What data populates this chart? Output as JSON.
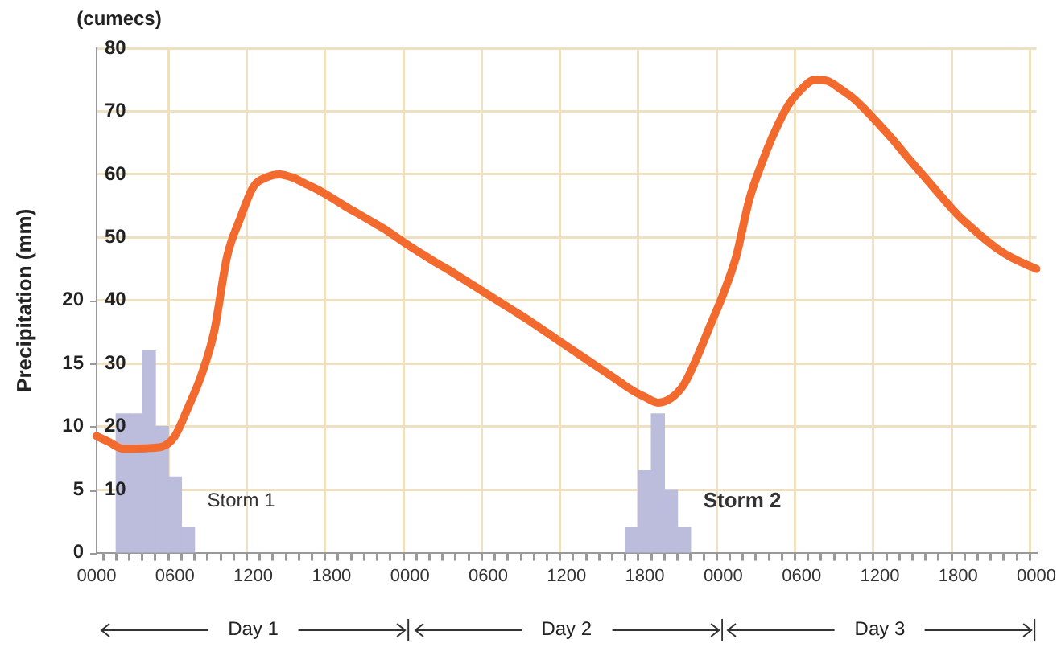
{
  "chart_data": {
    "type": "line",
    "ylabel": "(cumecs)",
    "y2label": "Precipitation (mm)",
    "categories": [
      "0000",
      null,
      null,
      null,
      null,
      null,
      "0600",
      null,
      null,
      null,
      null,
      null,
      "1200",
      null,
      null,
      null,
      null,
      null,
      "1800",
      null,
      null,
      null,
      null,
      null,
      "0000",
      null,
      null,
      null,
      null,
      null,
      "0600",
      null,
      null,
      null,
      null,
      null,
      "1200",
      null,
      null,
      null,
      null,
      null,
      "1800",
      null,
      null,
      null,
      null,
      null,
      "0000",
      null,
      null,
      null,
      null,
      null,
      "0600",
      null,
      null,
      null,
      null,
      null,
      "1200",
      null,
      null,
      null,
      null,
      null,
      "1800",
      null,
      null,
      null,
      null,
      null,
      "0000"
    ],
    "ylim": [
      0,
      80
    ],
    "yticks": [
      10,
      20,
      30,
      40,
      50,
      60,
      70,
      80
    ],
    "y2lim": [
      0,
      40
    ],
    "y2ticks": [
      0,
      5,
      10,
      15,
      20
    ],
    "grid": true,
    "legend": false,
    "series": [
      {
        "type": "bar",
        "axis": "y2",
        "color": "#bcbcdc",
        "values": [
          null,
          null,
          11,
          11,
          16,
          10,
          6,
          2,
          null,
          null,
          null,
          null,
          null,
          null,
          null,
          null,
          null,
          null,
          null,
          null,
          null,
          null,
          null,
          null,
          null,
          null,
          null,
          null,
          null,
          null,
          null,
          null,
          null,
          null,
          null,
          null,
          null,
          null,
          null,
          null,
          null,
          2,
          6.5,
          11,
          5,
          2,
          null,
          null,
          null,
          null,
          null,
          null,
          null,
          null,
          null,
          null,
          null,
          null,
          null,
          null,
          null,
          null,
          null,
          null,
          null,
          null,
          null,
          null,
          null,
          null,
          null,
          null,
          null
        ]
      },
      {
        "color": "#f26a2e",
        "values": [
          18.5,
          17.5,
          16.5,
          16.5,
          16.6,
          16.8,
          18.5,
          23,
          28,
          35,
          47,
          53,
          58,
          59.5,
          60,
          59.5,
          58.5,
          57.5,
          56.3,
          55,
          53.8,
          52.6,
          51.4,
          50,
          48.6,
          47.3,
          46,
          44.8,
          43.5,
          42.2,
          40.9,
          39.6,
          38.3,
          37,
          35.6,
          34.2,
          32.8,
          31.4,
          30,
          28.6,
          27.2,
          25.8,
          24.7,
          23.8,
          24.5,
          26.7,
          31,
          36,
          41,
          47,
          56,
          62,
          67,
          71,
          73.5,
          75,
          74.8,
          73.5,
          72,
          70,
          67.8,
          65.5,
          63,
          60.6,
          58.2,
          55.8,
          53.5,
          51.6,
          49.8,
          48.2,
          46.9,
          45.9,
          45
        ]
      }
    ],
    "annotations": [
      "Storm 1",
      "Storm 2",
      "Day 1",
      "Day 2",
      "Day 3"
    ]
  }
}
